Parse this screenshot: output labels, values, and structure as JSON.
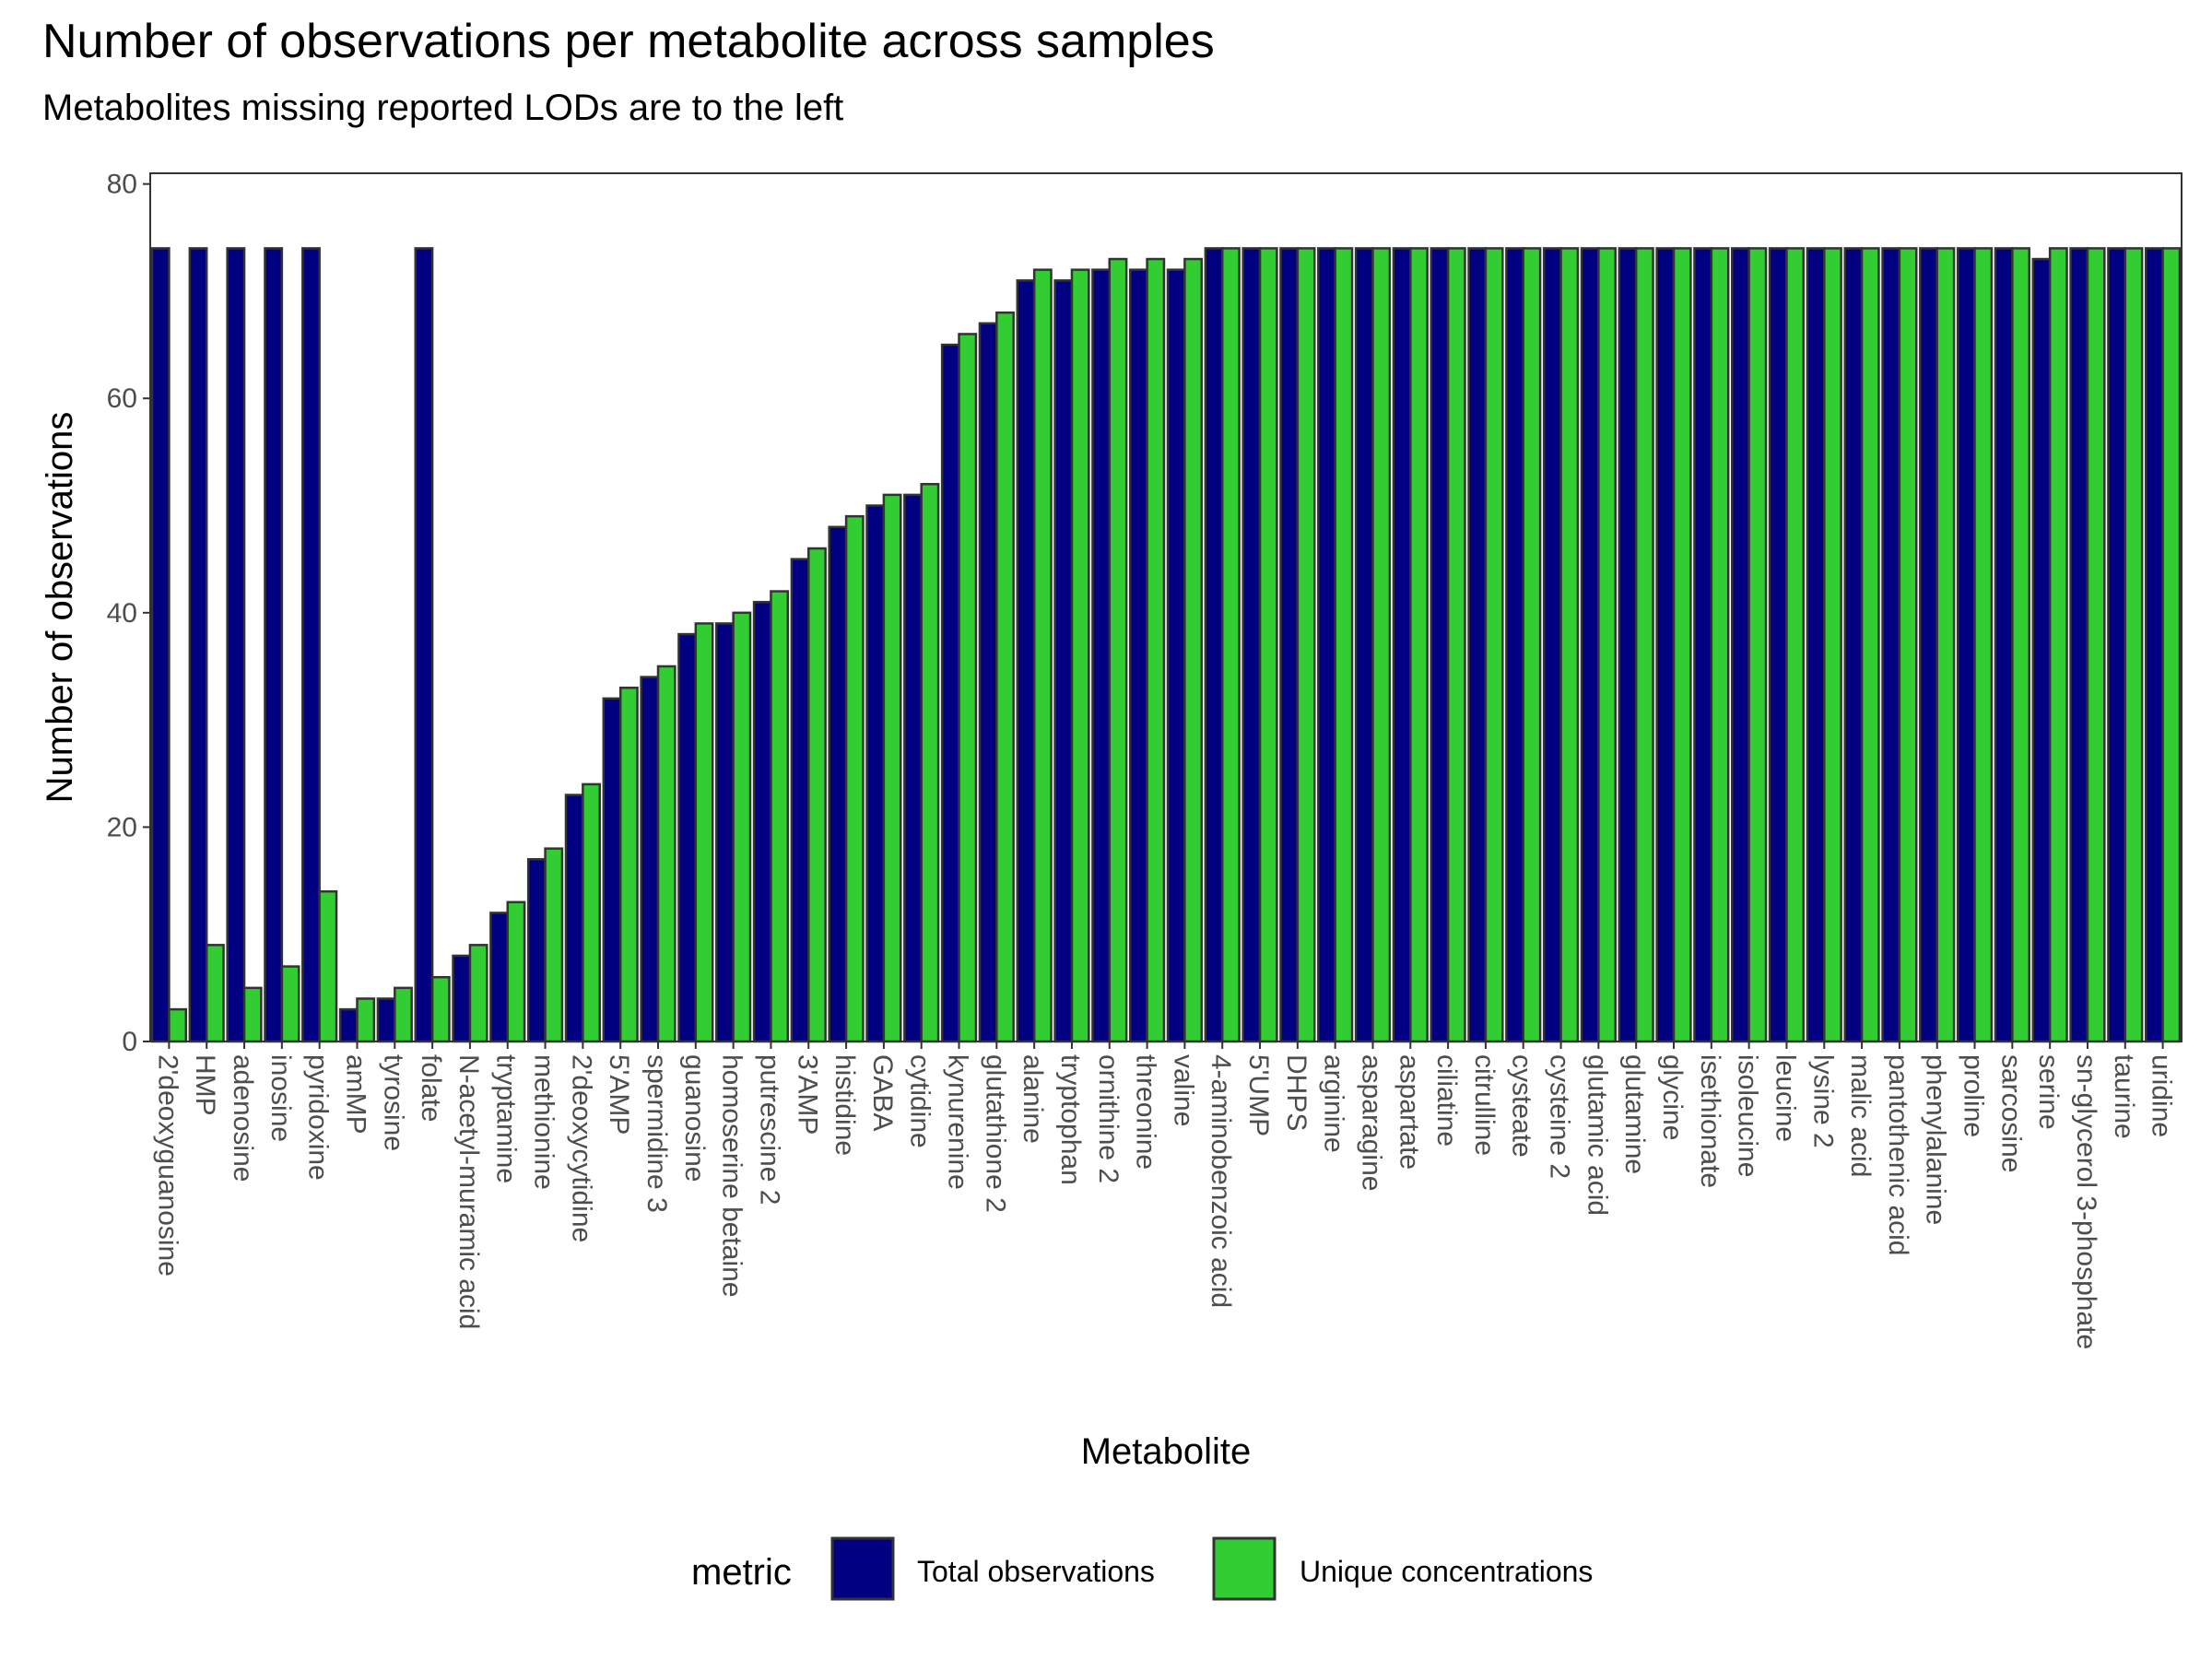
{
  "chart_data": {
    "type": "bar",
    "title": "Number of observations per metabolite across samples",
    "subtitle": "Metabolites missing reported LODs are to the left",
    "xlabel": "Metabolite",
    "ylabel": "Number of observations",
    "ylim": [
      0,
      81
    ],
    "yticks": [
      0,
      20,
      40,
      60,
      80
    ],
    "grid": false,
    "legend": {
      "title": "metric",
      "position": "bottom",
      "entries": [
        "Total observations",
        "Unique concentrations"
      ]
    },
    "categories": [
      "2'deoxyguanosine",
      "HMP",
      "adenosine",
      "inosine",
      "pyridoxine",
      "amMP",
      "tyrosine",
      "folate",
      "N-acetyl-muramic acid",
      "tryptamine",
      "methionine",
      "2'deoxycytidine",
      "5'AMP",
      "spermidine 3",
      "guanosine",
      "homoserine betaine",
      "putrescine 2",
      "3'AMP",
      "histidine",
      "GABA",
      "cytidine",
      "kynurenine",
      "glutathione 2",
      "alanine",
      "tryptophan",
      "ornithine 2",
      "threonine",
      "valine",
      "4-aminobenzoic acid",
      "5'UMP",
      "DHPS",
      "arginine",
      "asparagine",
      "aspartate",
      "ciliatine",
      "citrulline",
      "cysteate",
      "cysteine 2",
      "glutamic acid",
      "glutamine",
      "glycine",
      "isethionate",
      "isoleucine",
      "leucine",
      "lysine 2",
      "malic acid",
      "pantothenic acid",
      "phenylalanine",
      "proline",
      "sarcosine",
      "serine",
      "sn-glycerol 3-phosphate",
      "taurine",
      "uridine"
    ],
    "series": [
      {
        "name": "Total observations",
        "color": "#000080",
        "values": [
          74,
          74,
          74,
          74,
          74,
          3,
          4,
          74,
          8,
          12,
          17,
          23,
          32,
          34,
          38,
          39,
          41,
          45,
          48,
          50,
          51,
          65,
          67,
          71,
          71,
          72,
          72,
          72,
          74,
          74,
          74,
          74,
          74,
          74,
          74,
          74,
          74,
          74,
          74,
          74,
          74,
          74,
          74,
          74,
          74,
          74,
          74,
          74,
          74,
          74,
          73,
          74,
          74,
          74
        ]
      },
      {
        "name": "Unique concentrations",
        "color": "#32CD32",
        "values": [
          3,
          9,
          5,
          7,
          14,
          4,
          5,
          6,
          9,
          13,
          18,
          24,
          33,
          35,
          39,
          40,
          42,
          46,
          49,
          51,
          52,
          66,
          68,
          72,
          72,
          73,
          73,
          73,
          74,
          74,
          74,
          74,
          74,
          74,
          74,
          74,
          74,
          74,
          74,
          74,
          74,
          74,
          74,
          74,
          74,
          74,
          74,
          74,
          74,
          74,
          74,
          74,
          74,
          74
        ]
      }
    ]
  }
}
